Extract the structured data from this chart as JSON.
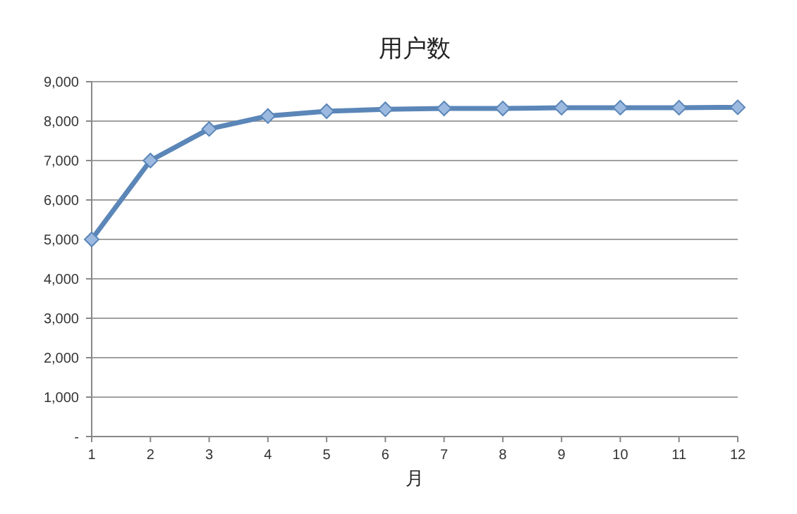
{
  "chart_data": {
    "type": "line",
    "title": "用户数",
    "xlabel": "月",
    "x": [
      1,
      2,
      3,
      4,
      5,
      6,
      7,
      8,
      9,
      10,
      11,
      12
    ],
    "series": [
      {
        "color": "#5b86b8",
        "values": [
          5000,
          7000,
          7800,
          8130,
          8250,
          8300,
          8320,
          8320,
          8340,
          8340,
          8340,
          8350
        ]
      }
    ],
    "xlim": [
      1,
      12
    ],
    "xticks": [
      1,
      2,
      3,
      4,
      5,
      6,
      7,
      8,
      9,
      10,
      11,
      12
    ],
    "ylim": [
      0,
      9000
    ],
    "yticks": [
      {
        "value": 0,
        "label": "-"
      },
      {
        "value": 1000,
        "label": "1,000"
      },
      {
        "value": 2000,
        "label": "2,000"
      },
      {
        "value": 3000,
        "label": "3,000"
      },
      {
        "value": 4000,
        "label": "4,000"
      },
      {
        "value": 5000,
        "label": "5,000"
      },
      {
        "value": 6000,
        "label": "6,000"
      },
      {
        "value": 7000,
        "label": "7,000"
      },
      {
        "value": 8000,
        "label": "8,000"
      },
      {
        "value": 9000,
        "label": "9,000"
      }
    ],
    "grid": "y",
    "marker": "diamond",
    "line_style": "solid"
  }
}
